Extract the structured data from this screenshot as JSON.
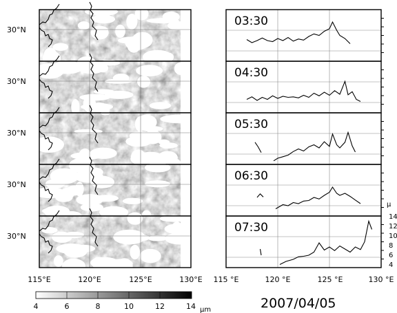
{
  "date": "2007/04/05",
  "lat_label": "30°N",
  "left_xticks": [
    "115°E",
    "120°E",
    "125°E",
    "130°E"
  ],
  "right_xticks": [
    "115 °E",
    "120 °E",
    "125 °E",
    "130 °E"
  ],
  "colorbar": {
    "ticks": [
      "4",
      "6",
      "8",
      "10",
      "12",
      "14"
    ],
    "unit": "μm",
    "range": [
      4,
      14
    ]
  },
  "right_axis_partial": {
    "unit": "μ",
    "ticks": [
      "14",
      "12",
      "10",
      "8",
      "6",
      "4"
    ]
  },
  "chart_data": [
    {
      "type": "heatmap",
      "panel": "map",
      "time": "03:30",
      "xlim": [
        115,
        130
      ],
      "x": "longitude",
      "y": "latitude",
      "quantity": "μm"
    },
    {
      "type": "heatmap",
      "panel": "map",
      "time": "04:30",
      "xlim": [
        115,
        130
      ],
      "x": "longitude",
      "y": "latitude",
      "quantity": "μm"
    },
    {
      "type": "heatmap",
      "panel": "map",
      "time": "05:30",
      "xlim": [
        115,
        130
      ],
      "x": "longitude",
      "y": "latitude",
      "quantity": "μm"
    },
    {
      "type": "heatmap",
      "panel": "map",
      "time": "06:30",
      "xlim": [
        115,
        130
      ],
      "x": "longitude",
      "y": "latitude",
      "quantity": "μm"
    },
    {
      "type": "heatmap",
      "panel": "map",
      "time": "07:30",
      "xlim": [
        115,
        130
      ],
      "x": "longitude",
      "y": "latitude",
      "quantity": "μm"
    },
    {
      "type": "line",
      "time": "03:30",
      "xlim": [
        115,
        130
      ],
      "ylim": [
        4,
        14
      ],
      "segments": [
        [
          [
            117.0,
            8.2
          ],
          [
            117.5,
            7.6
          ],
          [
            118.0,
            8.0
          ],
          [
            118.5,
            8.5
          ],
          [
            119.0,
            8.0
          ],
          [
            119.5,
            7.8
          ],
          [
            120.0,
            8.4
          ],
          [
            120.5,
            8.0
          ],
          [
            121.0,
            8.6
          ],
          [
            121.5,
            7.9
          ],
          [
            122.0,
            8.3
          ],
          [
            122.5,
            8.1
          ],
          [
            123.0,
            8.8
          ],
          [
            123.5,
            9.3
          ],
          [
            124.0,
            9.0
          ],
          [
            124.5,
            9.8
          ],
          [
            125.0,
            10.3
          ],
          [
            125.3,
            11.6
          ],
          [
            125.7,
            10.0
          ],
          [
            126.0,
            9.0
          ],
          [
            126.5,
            8.4
          ],
          [
            127.0,
            7.4
          ]
        ]
      ]
    },
    {
      "type": "line",
      "time": "04:30",
      "xlim": [
        115,
        130
      ],
      "ylim": [
        4,
        14
      ],
      "segments": [
        [
          [
            117.0,
            6.6
          ],
          [
            117.5,
            7.1
          ],
          [
            118.0,
            6.4
          ],
          [
            118.5,
            7.0
          ],
          [
            119.0,
            6.6
          ],
          [
            119.5,
            7.3
          ],
          [
            120.0,
            6.8
          ],
          [
            120.5,
            7.2
          ],
          [
            121.0,
            7.0
          ],
          [
            121.5,
            7.1
          ],
          [
            122.0,
            6.9
          ],
          [
            122.5,
            7.4
          ],
          [
            123.0,
            7.0
          ],
          [
            123.5,
            7.8
          ],
          [
            124.0,
            7.3
          ],
          [
            124.5,
            8.0
          ],
          [
            125.0,
            7.4
          ],
          [
            125.5,
            8.3
          ],
          [
            126.0,
            7.6
          ],
          [
            126.5,
            10.1
          ],
          [
            126.8,
            7.5
          ],
          [
            127.2,
            8.1
          ],
          [
            127.6,
            6.6
          ],
          [
            128.0,
            6.2
          ]
        ]
      ]
    },
    {
      "type": "line",
      "time": "05:30",
      "xlim": [
        115,
        130
      ],
      "ylim": [
        4,
        14
      ],
      "segments": [
        [
          [
            117.8,
            8.3
          ],
          [
            118.1,
            7.4
          ],
          [
            118.4,
            6.3
          ]
        ],
        [
          [
            119.6,
            4.7
          ],
          [
            120.0,
            5.2
          ],
          [
            120.5,
            5.5
          ],
          [
            121.0,
            5.8
          ],
          [
            121.5,
            6.5
          ],
          [
            122.0,
            7.0
          ],
          [
            122.5,
            6.6
          ],
          [
            123.0,
            7.4
          ],
          [
            123.5,
            7.8
          ],
          [
            124.0,
            7.2
          ],
          [
            124.5,
            8.4
          ],
          [
            125.0,
            7.5
          ],
          [
            125.3,
            9.9
          ],
          [
            125.7,
            7.8
          ],
          [
            126.0,
            7.2
          ],
          [
            126.5,
            8.3
          ],
          [
            126.8,
            10.2
          ],
          [
            127.2,
            7.6
          ],
          [
            127.5,
            6.4
          ]
        ]
      ]
    },
    {
      "type": "line",
      "time": "06:30",
      "xlim": [
        115,
        130
      ],
      "ylim": [
        4,
        14
      ],
      "segments": [
        [
          [
            118.0,
            7.6
          ],
          [
            118.3,
            8.3
          ],
          [
            118.6,
            7.7
          ]
        ],
        [
          [
            119.8,
            5.4
          ],
          [
            120.5,
            6.2
          ],
          [
            121.0,
            6.0
          ],
          [
            121.5,
            6.6
          ],
          [
            122.0,
            6.4
          ],
          [
            122.5,
            6.9
          ],
          [
            123.0,
            7.0
          ],
          [
            123.5,
            7.6
          ],
          [
            124.0,
            7.3
          ],
          [
            124.5,
            8.0
          ],
          [
            125.0,
            8.6
          ],
          [
            125.3,
            9.6
          ],
          [
            125.7,
            8.4
          ],
          [
            126.0,
            8.0
          ],
          [
            126.5,
            8.4
          ],
          [
            127.0,
            7.8
          ],
          [
            127.5,
            7.1
          ],
          [
            128.0,
            6.4
          ]
        ]
      ]
    },
    {
      "type": "line",
      "time": "07:30",
      "xlim": [
        115,
        130
      ],
      "ylim": [
        4,
        14
      ],
      "segments": [
        [
          [
            118.3,
            7.6
          ],
          [
            118.4,
            6.4
          ]
        ],
        [
          [
            120.2,
            4.6
          ],
          [
            120.8,
            5.2
          ],
          [
            121.5,
            5.6
          ],
          [
            122.0,
            6.1
          ],
          [
            122.5,
            6.2
          ],
          [
            123.0,
            6.4
          ],
          [
            123.5,
            7.0
          ],
          [
            124.0,
            8.8
          ],
          [
            124.5,
            7.4
          ],
          [
            125.0,
            8.0
          ],
          [
            125.5,
            7.3
          ],
          [
            126.0,
            8.2
          ],
          [
            126.5,
            7.6
          ],
          [
            127.0,
            7.0
          ],
          [
            127.5,
            8.0
          ],
          [
            128.0,
            7.5
          ],
          [
            128.4,
            9.0
          ],
          [
            128.8,
            13.0
          ],
          [
            129.1,
            11.4
          ]
        ]
      ]
    }
  ]
}
